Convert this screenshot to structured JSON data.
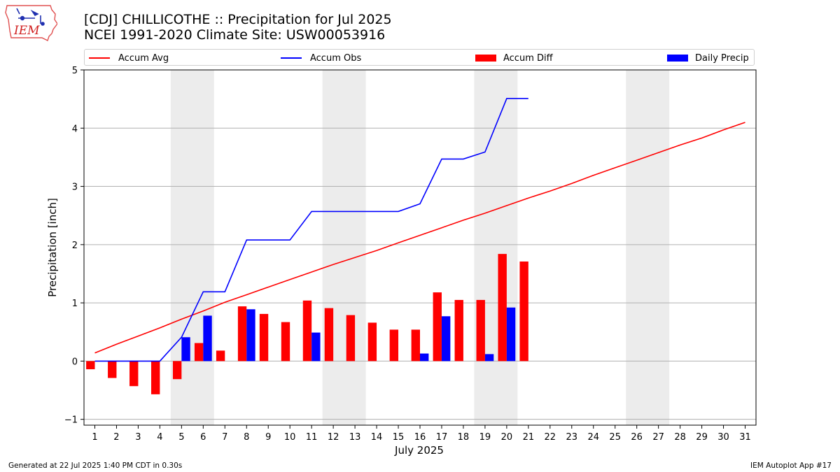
{
  "header": {
    "title_line1": "[CDJ] CHILLICOTHE :: Precipitation for Jul 2025",
    "title_line2": "NCEI 1991-2020 Climate Site: USW00053916",
    "logo_text": "IEM"
  },
  "footer": {
    "generated": "Generated at 22 Jul 2025 1:40 PM CDT in 0.30s",
    "app": "IEM Autoplot App #17"
  },
  "colors": {
    "avg": "#ff0000",
    "obs": "#0000ff",
    "diff": "#ff0000",
    "daily": "#0000ff",
    "weekend_shade": "#ececec",
    "grid": "#b0b0b0"
  },
  "chart_data": {
    "type": "bar",
    "title": "[CDJ] CHILLICOTHE :: Precipitation for Jul 2025",
    "subtitle": "NCEI 1991-2020 Climate Site: USW00053916",
    "xlabel": "July 2025",
    "ylabel": "Precipitation [inch]",
    "ylim": [
      -1.1,
      5
    ],
    "yticks": [
      -1,
      0,
      1,
      2,
      3,
      4,
      5
    ],
    "xlim": [
      0.5,
      31.5
    ],
    "categories": [
      1,
      2,
      3,
      4,
      5,
      6,
      7,
      8,
      9,
      10,
      11,
      12,
      13,
      14,
      15,
      16,
      17,
      18,
      19,
      20,
      21,
      22,
      23,
      24,
      25,
      26,
      27,
      28,
      29,
      30,
      31
    ],
    "grid": true,
    "legend_position": "top",
    "weekend_shading": [
      [
        5,
        6
      ],
      [
        12,
        13
      ],
      [
        19,
        20
      ],
      [
        26,
        27
      ]
    ],
    "series": [
      {
        "name": "Accum Avg",
        "kind": "line",
        "values": [
          0.14,
          0.29,
          0.43,
          0.57,
          0.72,
          0.86,
          1.01,
          1.14,
          1.27,
          1.4,
          1.53,
          1.66,
          1.78,
          1.9,
          2.03,
          2.16,
          2.29,
          2.42,
          2.54,
          2.67,
          2.8,
          2.92,
          3.05,
          3.19,
          3.32,
          3.45,
          3.58,
          3.71,
          3.83,
          3.97,
          4.1
        ]
      },
      {
        "name": "Accum Obs",
        "kind": "line",
        "values": [
          0,
          0,
          0,
          0,
          0.41,
          1.19,
          1.19,
          2.08,
          2.08,
          2.08,
          2.57,
          2.57,
          2.57,
          2.57,
          2.57,
          2.7,
          3.47,
          3.47,
          3.59,
          4.51,
          4.51,
          null,
          null,
          null,
          null,
          null,
          null,
          null,
          null,
          null,
          null
        ]
      },
      {
        "name": "Accum Diff",
        "kind": "bar",
        "values": [
          -0.14,
          -0.29,
          -0.43,
          -0.57,
          -0.31,
          0.31,
          0.18,
          0.94,
          0.81,
          0.67,
          1.04,
          0.91,
          0.79,
          0.66,
          0.54,
          0.54,
          1.18,
          1.05,
          1.05,
          1.84,
          1.71,
          null,
          null,
          null,
          null,
          null,
          null,
          null,
          null,
          null,
          null
        ]
      },
      {
        "name": "Daily Precip",
        "kind": "bar",
        "values": [
          0,
          0,
          0,
          0,
          0.41,
          0.78,
          0,
          0.89,
          0,
          0,
          0.49,
          0,
          0,
          0,
          0,
          0.13,
          0.77,
          0,
          0.12,
          0.92,
          0,
          null,
          null,
          null,
          null,
          null,
          null,
          null,
          null,
          null,
          null
        ]
      }
    ]
  }
}
